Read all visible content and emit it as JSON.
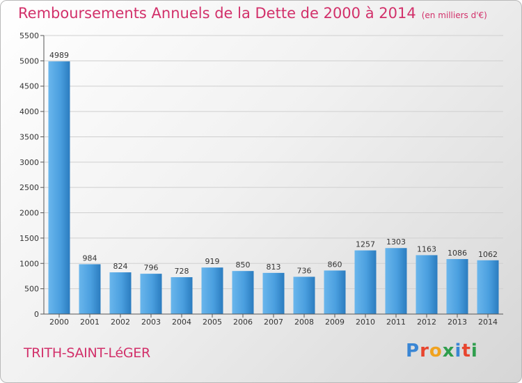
{
  "title": "Remboursements Annuels de la Dette de 2000 à 2014",
  "subtitle": "(en milliers d'€)",
  "commune": "TRITH-SAINT-LéGER",
  "logo": {
    "text": "Proxiti",
    "letters": [
      "P",
      "r",
      "o",
      "x",
      "i",
      "t",
      "i"
    ],
    "colors": [
      "#3a86d4",
      "#e8452e",
      "#f0a21f",
      "#2f9e4d",
      "#3a86d4",
      "#e8452e",
      "#2f9e4d"
    ]
  },
  "colors": {
    "title": "#d2306a",
    "bar_light": "#5aabe6",
    "bar_dark": "#2d7fc0",
    "grid": "#cfcfcf",
    "axis": "#555555"
  },
  "chart_data": {
    "type": "bar",
    "categories": [
      "2000",
      "2001",
      "2002",
      "2003",
      "2004",
      "2005",
      "2006",
      "2007",
      "2008",
      "2009",
      "2010",
      "2011",
      "2012",
      "2013",
      "2014"
    ],
    "values": [
      4989,
      984,
      824,
      796,
      728,
      919,
      850,
      813,
      736,
      860,
      1257,
      1303,
      1163,
      1086,
      1062
    ],
    "value_labels": [
      "4989",
      "984",
      "824",
      "796",
      "728",
      "919",
      "850",
      "813",
      "736",
      "860",
      "1257",
      "1303",
      "1163",
      "1086",
      "1062"
    ],
    "yticks": [
      0,
      500,
      1000,
      1500,
      2000,
      2500,
      3000,
      3500,
      4000,
      4500,
      5000,
      5500
    ],
    "ylim": [
      0,
      5500
    ],
    "xlabel": "",
    "ylabel": "",
    "grid": true
  }
}
